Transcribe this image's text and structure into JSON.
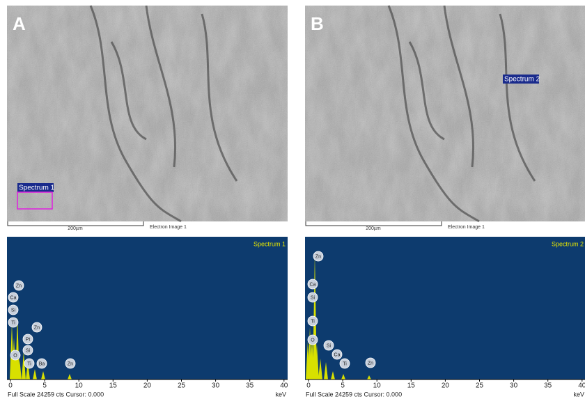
{
  "panels": [
    {
      "letter": "A",
      "marker": "Spectrum 1",
      "scale_bar": "200µm",
      "image_caption": "Electron Image 1",
      "spectrum_title": "Spectrum 1",
      "peaks": [
        "Zn",
        "Ca",
        "Si",
        "Ti",
        "Zn",
        "Pt",
        "O",
        "Si",
        "Ti",
        "Ba",
        "Zn"
      ],
      "axis_ticks": [
        0,
        5,
        10,
        15,
        20,
        25,
        30,
        35,
        40
      ],
      "axis_unit": "keV",
      "footer": "Full Scale 24259 cts Cursor: 0.000"
    },
    {
      "letter": "B",
      "marker": "Spectrum 2",
      "scale_bar": "200µm",
      "image_caption": "Electron Image 1",
      "spectrum_title": "Spectrum 2",
      "peaks": [
        "Zn",
        "Ca",
        "Si",
        "Ti",
        "O",
        "Si",
        "Ca",
        "Ti",
        "Zn"
      ],
      "axis_ticks": [
        0,
        5,
        10,
        15,
        20,
        25,
        30,
        35,
        40
      ],
      "axis_unit": "keV",
      "footer": "Full Scale 24259 cts Cursor: 0.000"
    }
  ]
}
